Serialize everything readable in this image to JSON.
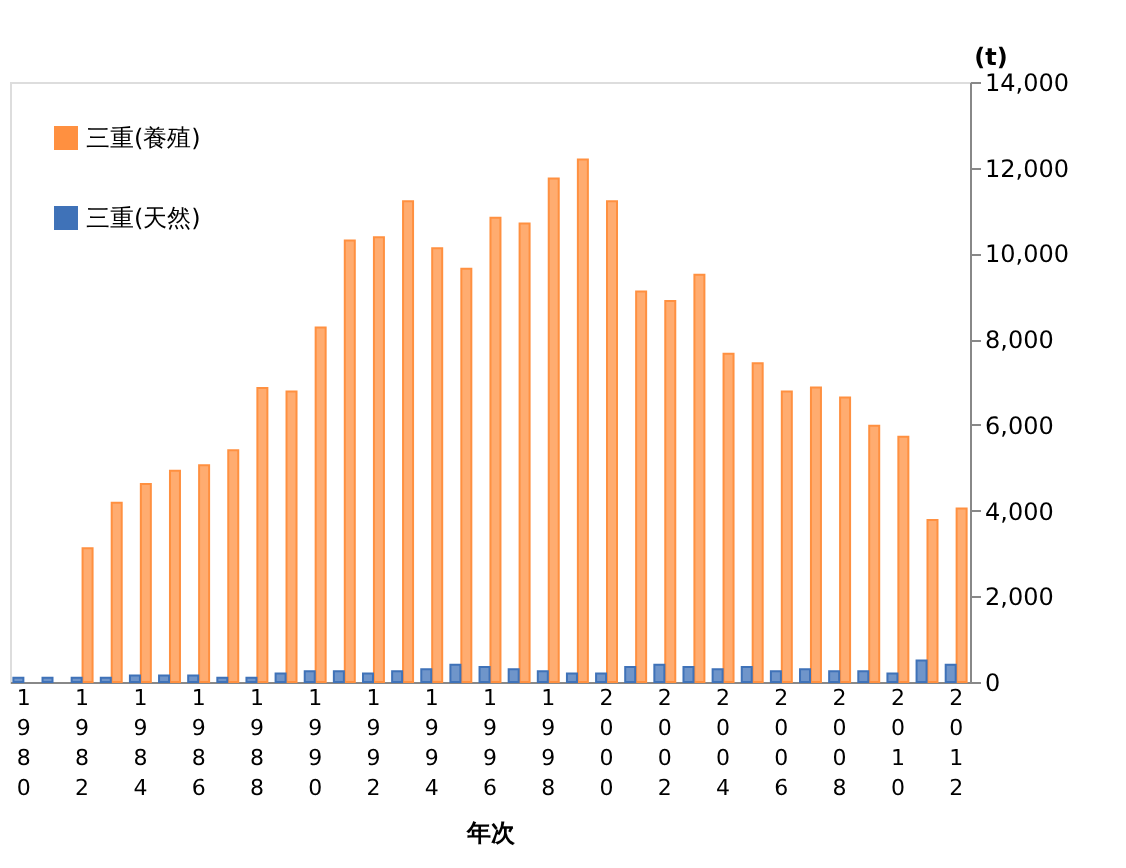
{
  "chart_data": {
    "type": "bar",
    "xlabel": "年次",
    "ylabel": "(t)",
    "categories": [
      "1980",
      null,
      "1982",
      null,
      "1984",
      null,
      "1986",
      null,
      "1988",
      null,
      "1990",
      null,
      "1992",
      null,
      "1994",
      null,
      "1996",
      null,
      "1998",
      null,
      "2000",
      null,
      "2002",
      null,
      "2004",
      null,
      "2006",
      null,
      "2008",
      null,
      "2010",
      null,
      "2012"
    ],
    "series": [
      {
        "name": "三重(養殖)",
        "color": "#ff9040",
        "values": [
          null,
          null,
          3120,
          4180,
          4620,
          4930,
          5060,
          5410,
          6860,
          6780,
          8270,
          10300,
          10380,
          11220,
          10120,
          9640,
          10830,
          10700,
          11750,
          12190,
          11220,
          9110,
          8890,
          9500,
          7660,
          7440,
          6780,
          6870,
          6640,
          5980,
          5720,
          3780,
          4050
        ]
      },
      {
        "name": "三重(天然)",
        "color": "#3f72b8",
        "values": [
          100,
          100,
          100,
          100,
          150,
          150,
          150,
          100,
          100,
          200,
          250,
          250,
          200,
          250,
          300,
          400,
          350,
          300,
          250,
          200,
          200,
          350,
          400,
          350,
          300,
          350,
          250,
          300,
          250,
          250,
          200,
          500,
          400
        ]
      }
    ],
    "ylim": [
      0,
      14000
    ],
    "yticks": [
      0,
      {
        "value": 2000,
        "label": "2,000"
      },
      {
        "value": 4000,
        "label": "4,000"
      },
      {
        "value": 6000,
        "label": "6,000"
      },
      {
        "value": 8000,
        "label": "8,000"
      },
      {
        "value": 10000,
        "label": "10,000"
      },
      {
        "value": 12000,
        "label": "12,000"
      },
      {
        "value": 14000,
        "label": "14,000"
      }
    ],
    "grid": false,
    "legend": "top left"
  }
}
